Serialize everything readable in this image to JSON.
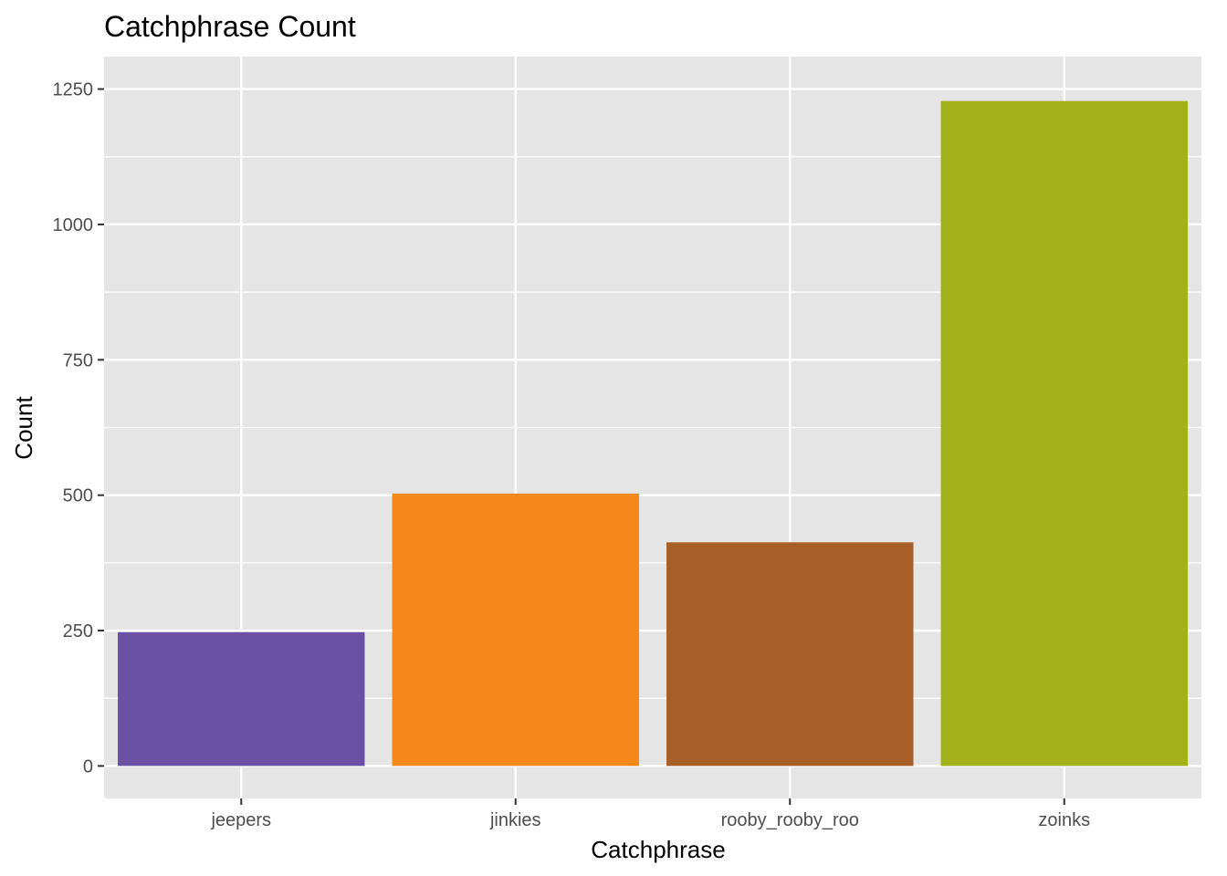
{
  "chart_data": {
    "type": "bar",
    "title": "Catchphrase Count",
    "xlabel": "Catchphrase",
    "ylabel": "Count",
    "categories": [
      "jeepers",
      "jinkies",
      "rooby_rooby_roo",
      "zoinks"
    ],
    "values": [
      247,
      503,
      413,
      1228
    ],
    "colors": [
      "#6a51a3",
      "#f4891a",
      "#a75f27",
      "#a3b218"
    ],
    "ylim": [
      -60,
      1310
    ],
    "yticks": [
      0,
      250,
      500,
      750,
      1000,
      1250
    ],
    "ytick_labels": [
      "0",
      "250",
      "500",
      "750",
      "1000",
      "1250"
    ],
    "grid": true,
    "legend": "none",
    "panel_background": "#e5e5e5",
    "grid_color": "#ffffff"
  }
}
